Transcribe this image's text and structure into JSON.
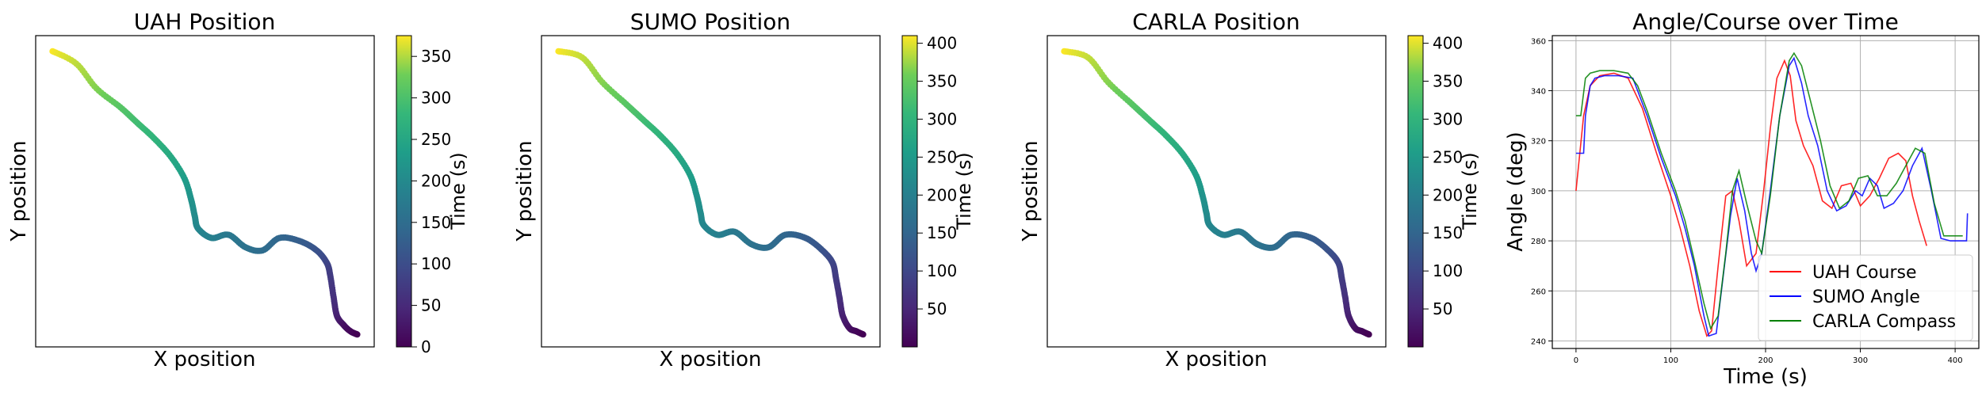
{
  "chart_data": [
    {
      "type": "scatter",
      "title": "UAH Position",
      "xlabel": "X position",
      "ylabel": "Y position",
      "colorbar": {
        "label": "Time (s)",
        "range": [
          0,
          375
        ],
        "ticks": [
          0,
          50,
          100,
          150,
          200,
          250,
          300,
          350
        ],
        "colormap": "viridis"
      },
      "x_ticks_shown": false,
      "y_ticks_shown": false,
      "trajectory": {
        "x": [
          0.05,
          0.12,
          0.18,
          0.25,
          0.3,
          0.35,
          0.4,
          0.44,
          0.46,
          0.47,
          0.48,
          0.52,
          0.57,
          0.62,
          0.67,
          0.72,
          0.78,
          0.83,
          0.86,
          0.87,
          0.88,
          0.89,
          0.91,
          0.93,
          0.95
        ],
        "y": [
          0.95,
          0.91,
          0.83,
          0.77,
          0.72,
          0.67,
          0.61,
          0.54,
          0.47,
          0.42,
          0.38,
          0.35,
          0.36,
          0.32,
          0.31,
          0.35,
          0.34,
          0.31,
          0.27,
          0.23,
          0.16,
          0.1,
          0.07,
          0.05,
          0.04
        ],
        "time": [
          375,
          355,
          335,
          310,
          292,
          275,
          255,
          235,
          215,
          205,
          195,
          185,
          170,
          160,
          150,
          140,
          125,
          110,
          90,
          75,
          60,
          40,
          20,
          10,
          0
        ]
      }
    },
    {
      "type": "scatter",
      "title": "SUMO Position",
      "xlabel": "X position",
      "ylabel": "Y position",
      "colorbar": {
        "label": "Time (s)",
        "range": [
          0,
          410
        ],
        "ticks": [
          50,
          100,
          150,
          200,
          250,
          300,
          350,
          400
        ],
        "colormap": "viridis"
      },
      "x_ticks_shown": false,
      "y_ticks_shown": false,
      "trajectory": {
        "x": [
          0.05,
          0.12,
          0.18,
          0.25,
          0.3,
          0.35,
          0.4,
          0.44,
          0.46,
          0.47,
          0.48,
          0.52,
          0.57,
          0.62,
          0.67,
          0.72,
          0.78,
          0.83,
          0.86,
          0.87,
          0.88,
          0.89,
          0.91,
          0.93,
          0.95
        ],
        "y": [
          0.95,
          0.93,
          0.85,
          0.78,
          0.73,
          0.68,
          0.62,
          0.55,
          0.48,
          0.43,
          0.39,
          0.36,
          0.37,
          0.33,
          0.32,
          0.36,
          0.35,
          0.31,
          0.27,
          0.22,
          0.16,
          0.1,
          0.06,
          0.05,
          0.04
        ],
        "time": [
          410,
          390,
          368,
          340,
          320,
          300,
          280,
          258,
          236,
          225,
          214,
          202,
          188,
          176,
          165,
          153,
          137,
          120,
          99,
          82,
          66,
          44,
          22,
          11,
          1
        ]
      }
    },
    {
      "type": "scatter",
      "title": "CARLA Position",
      "xlabel": "X position",
      "ylabel": "Y position",
      "colorbar": {
        "label": "Time (s)",
        "range": [
          0,
          410
        ],
        "ticks": [
          50,
          100,
          150,
          200,
          250,
          300,
          350,
          400
        ],
        "colormap": "viridis"
      },
      "x_ticks_shown": false,
      "y_ticks_shown": false,
      "trajectory": {
        "x": [
          0.05,
          0.12,
          0.18,
          0.25,
          0.3,
          0.35,
          0.4,
          0.44,
          0.46,
          0.47,
          0.48,
          0.52,
          0.57,
          0.62,
          0.67,
          0.72,
          0.78,
          0.83,
          0.86,
          0.87,
          0.88,
          0.89,
          0.91,
          0.93,
          0.95
        ],
        "y": [
          0.95,
          0.93,
          0.85,
          0.78,
          0.73,
          0.68,
          0.62,
          0.55,
          0.48,
          0.43,
          0.39,
          0.36,
          0.37,
          0.33,
          0.32,
          0.36,
          0.35,
          0.31,
          0.27,
          0.22,
          0.16,
          0.1,
          0.06,
          0.05,
          0.04
        ],
        "time": [
          410,
          390,
          368,
          340,
          320,
          300,
          280,
          258,
          236,
          225,
          214,
          202,
          188,
          176,
          165,
          153,
          137,
          120,
          99,
          82,
          66,
          44,
          22,
          11,
          1
        ]
      }
    },
    {
      "type": "line",
      "title": "Angle/Course over Time",
      "xlabel": "Time (s)",
      "ylabel": "Angle (deg)",
      "xlim": [
        -25,
        425
      ],
      "ylim": [
        237,
        362
      ],
      "x_ticks": [
        0,
        100,
        200,
        300,
        400
      ],
      "y_ticks": [
        240,
        260,
        280,
        300,
        320,
        340,
        360
      ],
      "grid": true,
      "legend_position": "lower-right",
      "series": [
        {
          "name": "UAH Course",
          "color": "#ff0000",
          "x": [
            0,
            8,
            15,
            25,
            40,
            55,
            70,
            85,
            100,
            110,
            120,
            130,
            138,
            143,
            150,
            158,
            165,
            172,
            180,
            190,
            198,
            205,
            212,
            220,
            226,
            232,
            240,
            250,
            260,
            270,
            280,
            290,
            300,
            310,
            320,
            330,
            340,
            348,
            355,
            362,
            370
          ],
          "y": [
            300,
            330,
            342,
            346,
            347,
            345,
            333,
            315,
            298,
            285,
            270,
            252,
            242,
            244,
            270,
            298,
            300,
            288,
            270,
            275,
            300,
            325,
            345,
            352,
            346,
            328,
            318,
            310,
            296,
            293,
            302,
            303,
            294,
            298,
            305,
            313,
            315,
            312,
            298,
            288,
            278
          ]
        },
        {
          "name": "SUMO Angle",
          "color": "#0000ff",
          "x": [
            0,
            8,
            10,
            15,
            20,
            30,
            45,
            60,
            65,
            75,
            90,
            105,
            115,
            125,
            135,
            140,
            148,
            155,
            163,
            170,
            178,
            185,
            190,
            196,
            205,
            215,
            225,
            230,
            238,
            245,
            255,
            265,
            275,
            285,
            295,
            302,
            310,
            318,
            325,
            335,
            345,
            355,
            365,
            375,
            385,
            395,
            405,
            412,
            413
          ],
          "y": [
            315,
            315,
            330,
            342,
            345,
            346,
            346,
            345,
            340,
            330,
            313,
            298,
            285,
            270,
            250,
            242,
            243,
            265,
            290,
            305,
            292,
            275,
            268,
            275,
            300,
            330,
            350,
            353,
            343,
            330,
            318,
            300,
            292,
            294,
            300,
            298,
            305,
            302,
            293,
            295,
            300,
            310,
            317,
            300,
            281,
            280,
            280,
            280,
            291
          ]
        },
        {
          "name": "CARLA Compass",
          "color": "#008000",
          "x": [
            0,
            5,
            10,
            15,
            25,
            40,
            55,
            65,
            75,
            90,
            105,
            115,
            125,
            135,
            142,
            150,
            158,
            165,
            172,
            180,
            190,
            196,
            205,
            215,
            225,
            230,
            238,
            248,
            258,
            268,
            278,
            288,
            298,
            308,
            318,
            328,
            338,
            348,
            358,
            368,
            378,
            388,
            398,
            408
          ],
          "y": [
            330,
            330,
            345,
            347,
            348,
            348,
            347,
            342,
            332,
            315,
            300,
            288,
            272,
            255,
            245,
            250,
            275,
            300,
            308,
            295,
            280,
            275,
            298,
            330,
            352,
            355,
            350,
            335,
            320,
            302,
            293,
            296,
            305,
            306,
            298,
            298,
            303,
            310,
            317,
            315,
            295,
            282,
            282,
            282
          ]
        }
      ]
    }
  ]
}
